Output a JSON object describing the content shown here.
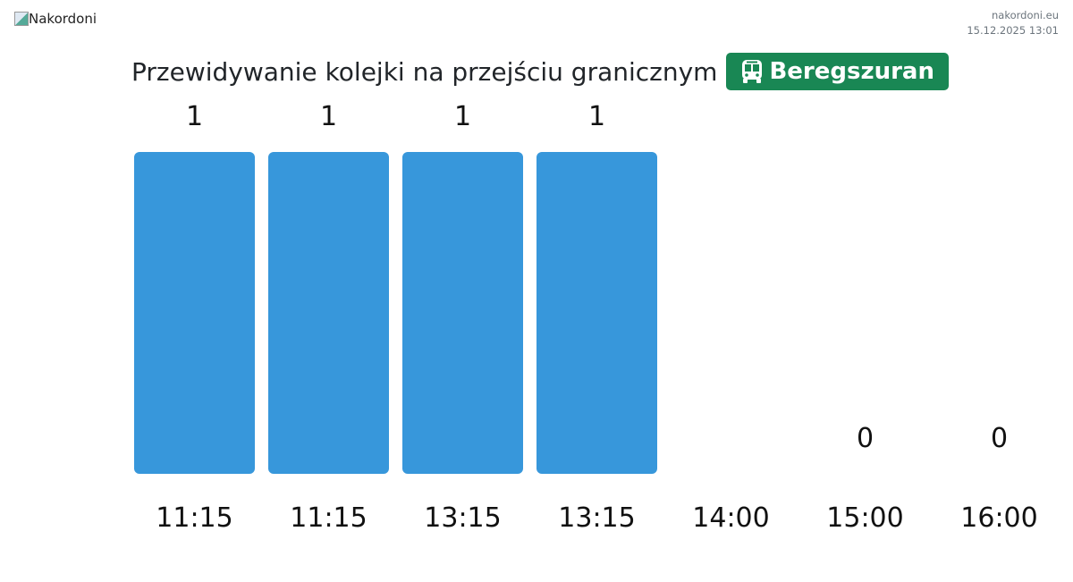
{
  "header": {
    "logo_alt": "Nakordoni",
    "site": "nakordoni.eu",
    "timestamp": "15.12.2025 13:01"
  },
  "title": "Przewidywanie kolejki na przejściu granicznym",
  "badge": {
    "icon": "bus-icon",
    "label": "Beregszuran",
    "color": "#198754"
  },
  "chart_data": {
    "type": "bar",
    "categories": [
      "11:15",
      "11:15",
      "13:15",
      "13:15",
      "14:00",
      "15:00",
      "16:00"
    ],
    "values": [
      1,
      1,
      1,
      1,
      null,
      0,
      0
    ],
    "ylim": [
      0,
      1
    ],
    "grid": false,
    "bar_color": "#3797db",
    "xlabel": "",
    "ylabel": ""
  }
}
